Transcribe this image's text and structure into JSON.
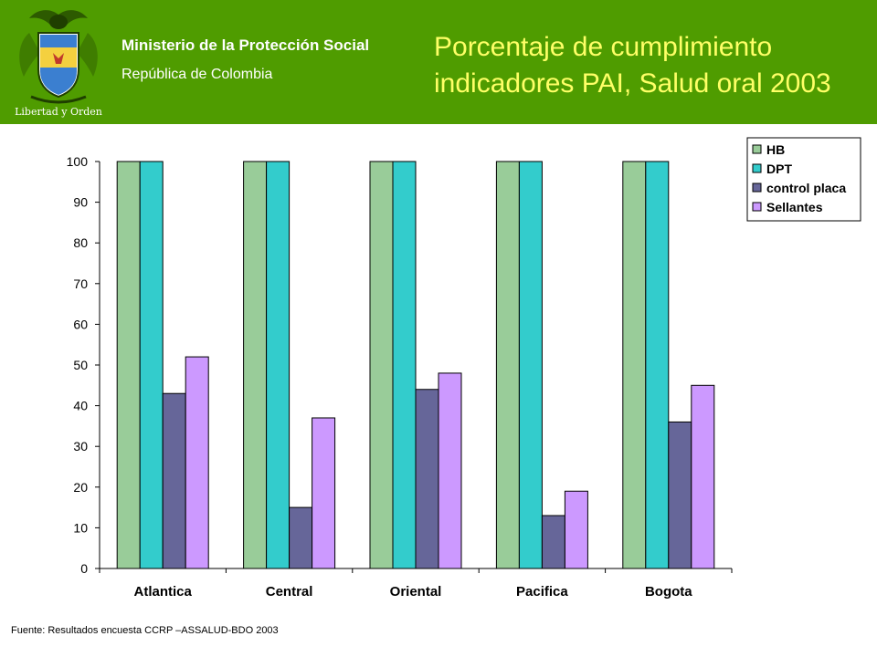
{
  "header": {
    "ministry": "Ministerio de la Protección Social",
    "republic": "República de Colombia",
    "logo_text": "Libertad y Orden",
    "background_color": "#4f9c00",
    "title_color": "#ffff66"
  },
  "title_lines": [
    "Porcentaje de cumplimiento",
    "indicadores PAI, Salud oral 2003"
  ],
  "source": "Fuente: Resultados encuesta CCRP –ASSALUD-BDO 2003",
  "chart_data": {
    "type": "bar",
    "title": "Porcentaje de cumplimiento indicadores PAI, Salud oral 2003",
    "xlabel": "",
    "ylabel": "",
    "categories": [
      "Atlantica",
      "Central",
      "Oriental",
      "Pacifica",
      "Bogota"
    ],
    "series": [
      {
        "name": "HB",
        "color": "#99cc99",
        "values": [
          100,
          100,
          100,
          100,
          100
        ]
      },
      {
        "name": "DPT",
        "color": "#33cccc",
        "values": [
          100,
          100,
          100,
          100,
          100
        ]
      },
      {
        "name": "control placa",
        "color": "#666699",
        "values": [
          43,
          15,
          44,
          13,
          36
        ]
      },
      {
        "name": "Sellantes",
        "color": "#cc99ff",
        "values": [
          52,
          37,
          48,
          19,
          45
        ]
      }
    ],
    "ylim": [
      0,
      100
    ],
    "yticks": [
      0,
      10,
      20,
      30,
      40,
      50,
      60,
      70,
      80,
      90,
      100
    ],
    "grid": false,
    "legend_position": "top-right"
  }
}
